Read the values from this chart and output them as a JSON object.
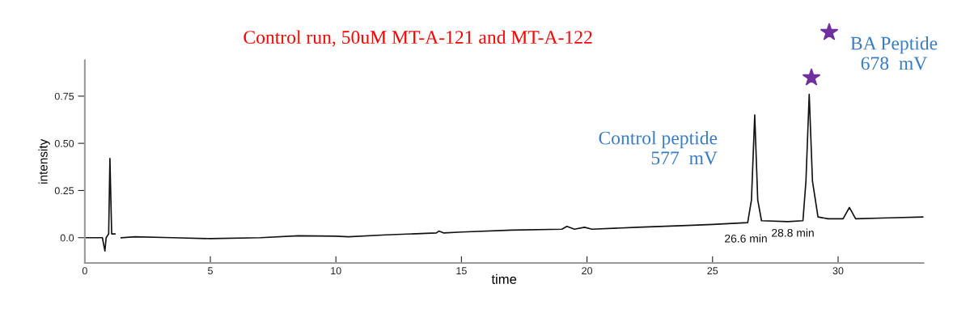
{
  "chart_data": {
    "type": "line",
    "title": "Control run, 50uM MT-A-121 and MT-A-122",
    "xlabel": "time",
    "ylabel": "intensity",
    "x": [
      0,
      0.7,
      0.8,
      0.85,
      0.95,
      1.0,
      1.07,
      1.2,
      1.25,
      1.38,
      1.45,
      2,
      3.5,
      5,
      7,
      8.5,
      10,
      10.5,
      12,
      14,
      14.1,
      14.3,
      15,
      17,
      19,
      19.2,
      19.5,
      19.9,
      20.2,
      22,
      24,
      25,
      26.4,
      26.55,
      26.68,
      26.8,
      26.95,
      28,
      28.6,
      28.72,
      28.85,
      28.98,
      29.2,
      29.6,
      30.2,
      30.45,
      30.7,
      32,
      33.4
    ],
    "series": [
      {
        "color": "#111111",
        "values": [
          0,
          0,
          -0.07,
          0,
          0.02,
          0.42,
          0.02,
          0.02,
          null,
          null,
          0,
          0.005,
          0,
          -0.005,
          0,
          0.01,
          0.008,
          0.005,
          0.015,
          0.025,
          0.035,
          0.025,
          0.03,
          0.04,
          0.045,
          0.06,
          0.045,
          0.055,
          0.045,
          0.055,
          0.065,
          0.07,
          0.08,
          0.2,
          0.65,
          0.2,
          0.09,
          0.085,
          0.09,
          0.3,
          0.76,
          0.3,
          0.11,
          0.1,
          0.1,
          0.16,
          0.1,
          0.105,
          0.11
        ]
      }
    ],
    "xlim": [
      0,
      33.4
    ],
    "ylim": [
      -0.134,
      0.94
    ],
    "xticks": [
      0,
      5,
      10,
      15,
      20,
      25,
      30
    ],
    "yticks": [
      {
        "value": 0,
        "label": "0.0"
      },
      0.25,
      {
        "value": 0.5,
        "label": "0.50"
      },
      0.75
    ],
    "annotations": [
      "Control peptide\n577  mV",
      "BA Peptide\n678  mV",
      "26.6 min",
      "28.8 min"
    ],
    "grid": false,
    "legend": false,
    "marker": "none",
    "line_style": "solid"
  }
}
